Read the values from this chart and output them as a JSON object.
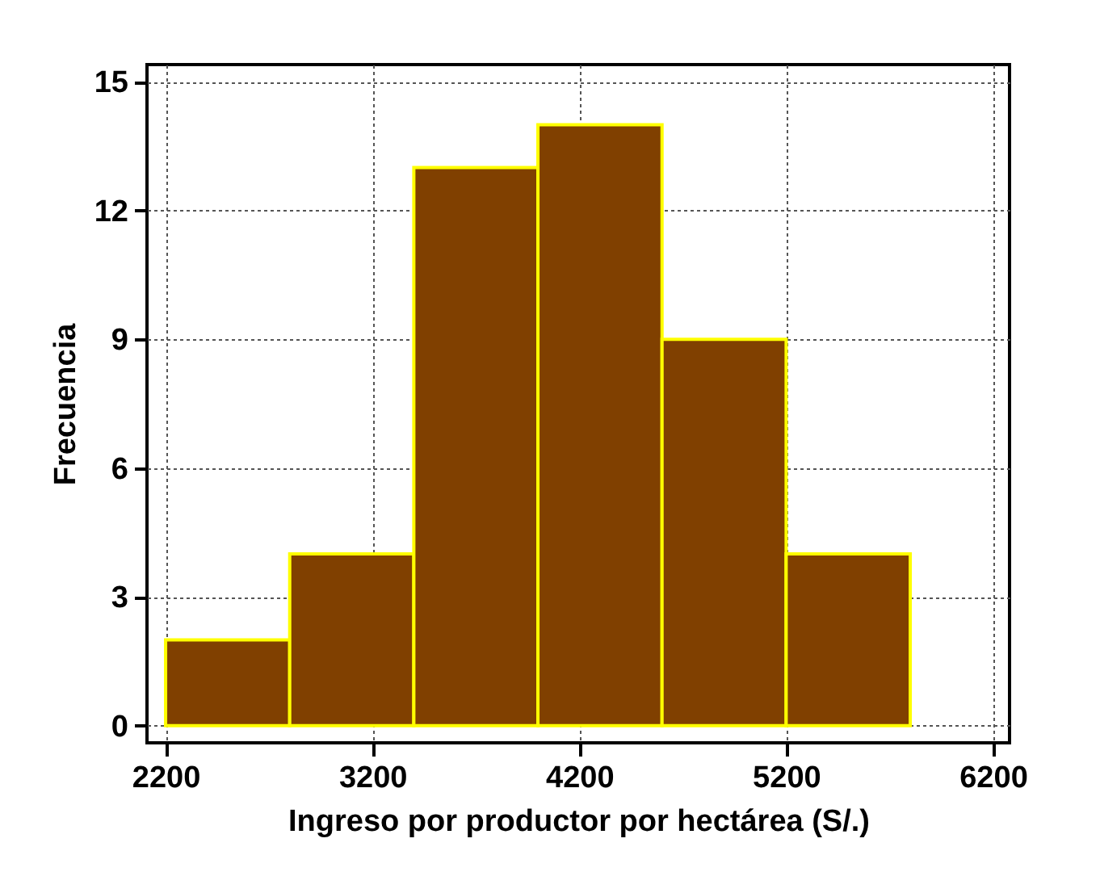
{
  "chart_data": {
    "type": "histogram",
    "xlabel": "Ingreso por productor por hectárea (S/.)",
    "ylabel": "Frecuencia",
    "bins": [
      2200,
      2800,
      3400,
      4000,
      4600,
      5200,
      5800
    ],
    "values": [
      2,
      4,
      13,
      14,
      9,
      4
    ],
    "color": "#804000",
    "xlim": [
      2110,
      6280
    ],
    "xticks": [
      2200,
      3200,
      4200,
      5200,
      6200
    ],
    "ylim": [
      -0.4,
      15.4
    ],
    "yticks": [
      0,
      3,
      6,
      9,
      12,
      15
    ],
    "grid": true
  }
}
